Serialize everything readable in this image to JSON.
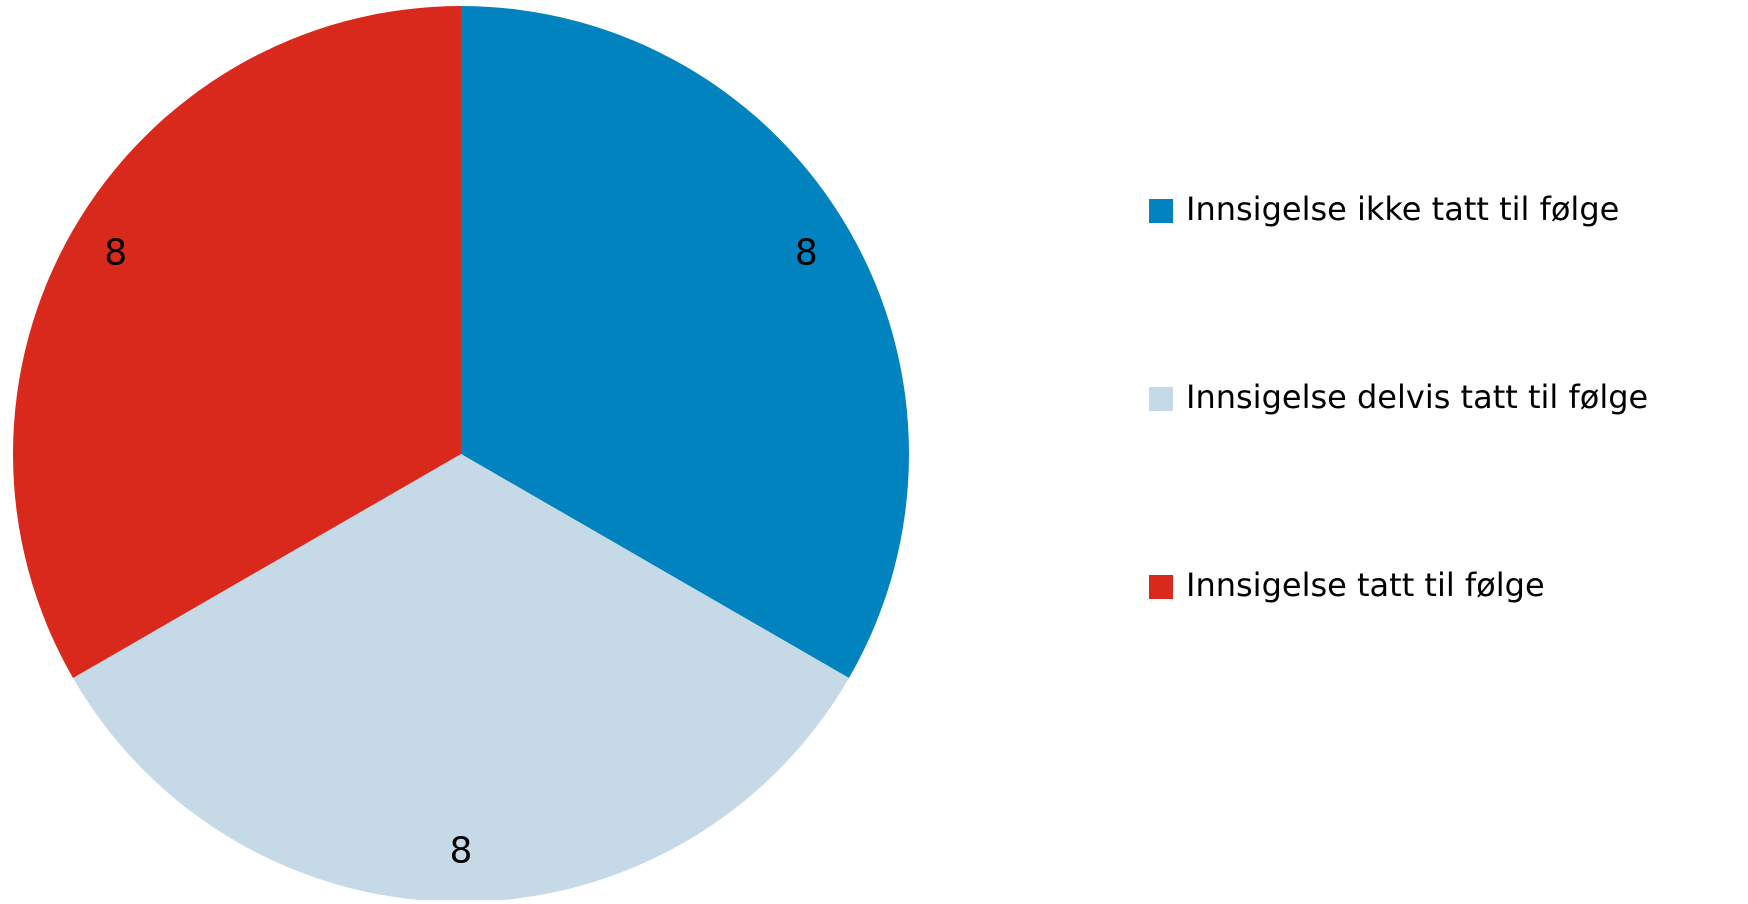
{
  "chart_data": {
    "type": "pie",
    "categories": [
      "Innsigelse ikke tatt til følge",
      "Innsigelse delvis tatt til følge",
      "Innsigelse tatt til følge"
    ],
    "values": [
      8,
      8,
      8
    ],
    "colors": [
      "#0083be",
      "#c5d9e7",
      "#d9291c"
    ],
    "legend": "right"
  }
}
